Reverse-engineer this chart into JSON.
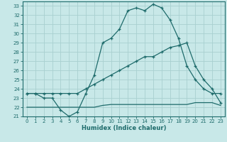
{
  "xlabel": "Humidex (Indice chaleur)",
  "background_color": "#c8e8e8",
  "grid_color": "#a8d0d0",
  "line_color": "#1e6b6b",
  "xlim": [
    -0.5,
    23.5
  ],
  "ylim": [
    21,
    33.5
  ],
  "yticks": [
    21,
    22,
    23,
    24,
    25,
    26,
    27,
    28,
    29,
    30,
    31,
    32,
    33
  ],
  "xticks": [
    0,
    1,
    2,
    3,
    4,
    5,
    6,
    7,
    8,
    9,
    10,
    11,
    12,
    13,
    14,
    15,
    16,
    17,
    18,
    19,
    20,
    21,
    22,
    23
  ],
  "line1_x": [
    0,
    1,
    2,
    3,
    4,
    5,
    6,
    7,
    8,
    9,
    10,
    11,
    12,
    13,
    14,
    15,
    16,
    17,
    18,
    19,
    20,
    21,
    22,
    23
  ],
  "line1_y": [
    23.5,
    23.5,
    23.0,
    23.0,
    21.7,
    21.0,
    21.5,
    23.5,
    25.5,
    29.0,
    29.5,
    30.5,
    32.5,
    32.8,
    32.5,
    33.2,
    32.8,
    31.5,
    29.5,
    26.5,
    25.0,
    24.0,
    23.5,
    23.5
  ],
  "line2_x": [
    0,
    1,
    2,
    3,
    4,
    5,
    6,
    7,
    8,
    9,
    10,
    11,
    12,
    13,
    14,
    15,
    16,
    17,
    18,
    19,
    20,
    21,
    22,
    23
  ],
  "line2_y": [
    23.5,
    23.5,
    23.5,
    23.5,
    23.5,
    23.5,
    23.5,
    24.0,
    24.5,
    25.0,
    25.5,
    26.0,
    26.5,
    27.0,
    27.5,
    27.5,
    28.0,
    28.5,
    28.7,
    29.0,
    26.5,
    25.0,
    24.0,
    22.5
  ],
  "line3_x": [
    0,
    1,
    2,
    3,
    4,
    5,
    6,
    7,
    8,
    9,
    10,
    11,
    12,
    13,
    14,
    15,
    16,
    17,
    18,
    19,
    20,
    21,
    22,
    23
  ],
  "line3_y": [
    22.0,
    22.0,
    22.0,
    22.0,
    22.0,
    22.0,
    22.0,
    22.0,
    22.0,
    22.2,
    22.3,
    22.3,
    22.3,
    22.3,
    22.3,
    22.3,
    22.3,
    22.3,
    22.3,
    22.3,
    22.5,
    22.5,
    22.5,
    22.2
  ]
}
